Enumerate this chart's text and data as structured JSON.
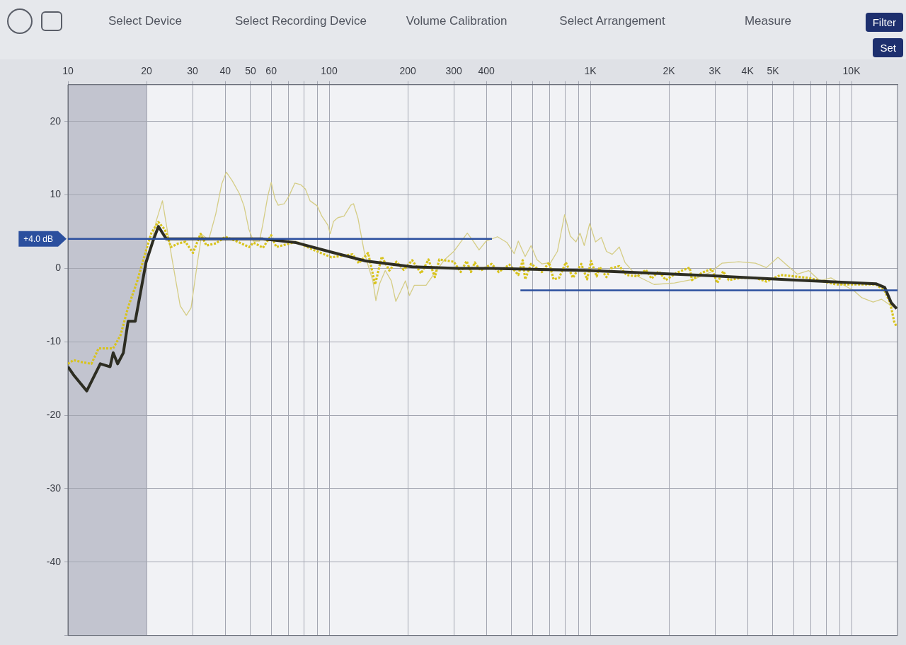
{
  "chart_data": {
    "type": "line",
    "log": "x",
    "grid": true,
    "legend": false,
    "marker": "none",
    "xlim": [
      10,
      15000
    ],
    "xticks": [
      10,
      20,
      30,
      40,
      50,
      60,
      {
        "value": 70,
        "label": null
      },
      {
        "value": 80,
        "label": null
      },
      {
        "value": 90,
        "label": null
      },
      100,
      200,
      300,
      400,
      {
        "value": 500,
        "label": null
      },
      {
        "value": 600,
        "label": null
      },
      {
        "value": 700,
        "label": null
      },
      {
        "value": 800,
        "label": null
      },
      {
        "value": 900,
        "label": null
      },
      {
        "value": 1000,
        "label": "1K"
      },
      {
        "value": 2000,
        "label": "2K"
      },
      {
        "value": 3000,
        "label": "3K"
      },
      {
        "value": 4000,
        "label": "4K"
      },
      {
        "value": 5000,
        "label": "5K"
      },
      {
        "value": 6000,
        "label": null
      },
      {
        "value": 7000,
        "label": null
      },
      {
        "value": 8000,
        "label": null
      },
      {
        "value": 9000,
        "label": null
      },
      {
        "value": 10000,
        "label": "10K"
      }
    ],
    "ylim": [
      -50,
      25
    ],
    "yticks": [
      20,
      10,
      0,
      -10,
      -20,
      -30,
      -40,
      {
        "value": -50,
        "label": null
      }
    ],
    "bands": [
      {
        "axis": "x",
        "from": 10,
        "to": 20,
        "color": "#c2c4cf"
      }
    ],
    "annotations": [
      "Select Device",
      "Select Recording Device",
      "Volume Calibration",
      "Select Arrangement",
      "Measure",
      "Filter",
      "Set",
      {
        "text": "+4.0 dB",
        "x": 10,
        "y": 4
      }
    ],
    "series": [
      {
        "color": "#d5cd86",
        "x": [
          20.5,
          21.8,
          23.0,
          25.0,
          26.9,
          28.4,
          29.6,
          31.2,
          32.5,
          34.6,
          36.8,
          38.8,
          40.4,
          42.6,
          45.3,
          47.2,
          49.3,
          51.3,
          54.1,
          55.8,
          58.2,
          60.0,
          62.0,
          63.8,
          67.3,
          70.1,
          73.9,
          77.8,
          81.1,
          84.5,
          90.0,
          93.8,
          98.8,
          101,
          104,
          108,
          114,
          121,
          124,
          129,
          136,
          141,
          147,
          151,
          156,
          164,
          173,
          180,
          188,
          196,
          203,
          212,
          235,
          254,
          277,
          300,
          338,
          353,
          375,
          399,
          441,
          480,
          511,
          530,
          563,
          593,
          624,
          653,
          705,
          748,
          797,
          838,
          881,
          913,
          948,
          994,
          1047,
          1102,
          1153,
          1213,
          1291,
          1357,
          1500,
          1755,
          2100,
          2484,
          2900,
          3190,
          3698,
          4287,
          4722,
          5230,
          5630,
          6200,
          6851,
          7569,
          8340,
          9236,
          10170,
          10950,
          12100,
          13020,
          14040,
          14890
        ],
        "values": [
          2.0,
          6.5,
          9.2,
          1.4,
          -5.1,
          -6.4,
          -5.4,
          0.4,
          4.6,
          3.9,
          7.4,
          11.5,
          13.1,
          11.9,
          10.2,
          8.5,
          5.3,
          3.7,
          3.7,
          6.1,
          9.8,
          11.7,
          9.5,
          8.6,
          8.8,
          9.8,
          11.6,
          11.4,
          10.8,
          9.2,
          8.5,
          7.1,
          5.9,
          4.7,
          6.4,
          6.9,
          7.1,
          8.6,
          8.8,
          6.8,
          2.4,
          0.4,
          -1.7,
          -4.4,
          -2.1,
          -0.3,
          -1.7,
          -4.5,
          -3.1,
          -1.7,
          -3.7,
          -2.3,
          -2.3,
          -0.6,
          1.2,
          2.3,
          4.8,
          3.9,
          2.5,
          3.7,
          4.3,
          3.5,
          2.0,
          3.7,
          1.6,
          3.1,
          1.2,
          0.6,
          0.8,
          2.3,
          7.3,
          4.4,
          3.6,
          4.8,
          3.1,
          6.1,
          3.6,
          4.2,
          2.3,
          1.9,
          2.9,
          0.8,
          -1.0,
          -2.2,
          -2.0,
          -1.5,
          -0.5,
          0.7,
          0.9,
          0.7,
          0.1,
          1.5,
          0.5,
          -0.8,
          -0.3,
          -1.7,
          -1.3,
          -2.2,
          -3.0,
          -4.0,
          -4.6,
          -4.2,
          -5.0,
          -5.4
        ]
      },
      {
        "color": "#d8c31c",
        "line_style": "dotted",
        "x": [
          10,
          10.5,
          11.4,
          12.3,
          13.1,
          14.9,
          15.9,
          17.0,
          18.4,
          19.6,
          20.9,
          22.2,
          23.5,
          24.8,
          26.5,
          28.2,
          30.1,
          32.2,
          33.9,
          36.9,
          40.0,
          43.5,
          49.4,
          51.4,
          55.8,
          60.0,
          62.7,
          74.7,
          86,
          102,
          123,
          130,
          141,
          150,
          159,
          170,
          181,
          193,
          208,
          225,
          240,
          254,
          264,
          300,
          319,
          336,
          349,
          361,
          380,
          419,
          446,
          490,
          530,
          551,
          563,
          593,
          653,
          695,
          723,
          759,
          806,
          858,
          923,
          972,
          1006,
          1058,
          1086,
          1153,
          1200,
          1291,
          1375,
          1514,
          1631,
          1716,
          1827,
          1945,
          2143,
          2400,
          2450,
          2674,
          2920,
          3064,
          3226,
          3388,
          3783,
          4287,
          4722,
          5351,
          6851,
          7569,
          8774,
          10400,
          12410,
          13360,
          14070,
          14550,
          14890
        ],
        "values": [
          -13.0,
          -12.5,
          -12.8,
          -13.0,
          -10.9,
          -10.9,
          -9.1,
          -5.3,
          -1.8,
          1.6,
          4.9,
          6.3,
          5.3,
          2.9,
          3.4,
          3.6,
          2.1,
          4.7,
          3.1,
          3.4,
          4.3,
          3.8,
          2.9,
          3.5,
          2.8,
          4.5,
          2.9,
          3.6,
          2.6,
          1.5,
          1.9,
          0.7,
          2.1,
          -2.2,
          1.6,
          -0.3,
          0.9,
          -0.2,
          1.1,
          -0.7,
          1.2,
          -1.2,
          1.2,
          0.9,
          -0.5,
          1.0,
          -0.5,
          0.8,
          -0.3,
          0.6,
          -0.5,
          0.5,
          -0.9,
          1.1,
          -1.5,
          0.6,
          -0.5,
          0.8,
          -1.5,
          -1.3,
          0.8,
          -1.3,
          0.6,
          -1.5,
          1.0,
          -1.1,
          0.2,
          -1.2,
          0,
          0.3,
          -0.9,
          -1.1,
          -0.2,
          -1.4,
          -0.4,
          -1.6,
          -0.6,
          0.1,
          -1.6,
          -0.6,
          -0.1,
          -2.0,
          -0.4,
          -1.6,
          -1.3,
          -1.3,
          -1.8,
          -0.9,
          -1.3,
          -1.7,
          -2.2,
          -2.2,
          -2.2,
          -3.0,
          -4.7,
          -7.2,
          -8.0
        ]
      },
      {
        "color": "#2d2d22",
        "x": [
          10,
          10.5,
          11.8,
          13.3,
          14.5,
          14.9,
          15.5,
          16.3,
          17.0,
          18.1,
          19.9,
          21.2,
          22.2,
          23.8,
          26,
          55.8,
          74.7,
          102,
          138,
          208,
          312,
          422,
          990,
          2860,
          6080,
          12390,
          13400,
          14200,
          14890
        ],
        "values": [
          -13.4,
          -14.5,
          -16.7,
          -13.0,
          -13.4,
          -11.5,
          -13.0,
          -11.5,
          -7.2,
          -7.2,
          0.8,
          3.8,
          5.7,
          4.0,
          4.0,
          4.0,
          3.5,
          2.2,
          1.0,
          0.2,
          0,
          0,
          -0.3,
          -1.0,
          -1.6,
          -2.1,
          -2.6,
          -4.7,
          -5.5
        ]
      },
      {
        "color": "#2b4f9e",
        "x": [
          10,
          420
        ],
        "values": [
          4,
          4
        ]
      },
      {
        "color": "#2b4f9e",
        "x": [
          540,
          15000
        ],
        "values": [
          -3,
          -3
        ]
      }
    ]
  }
}
